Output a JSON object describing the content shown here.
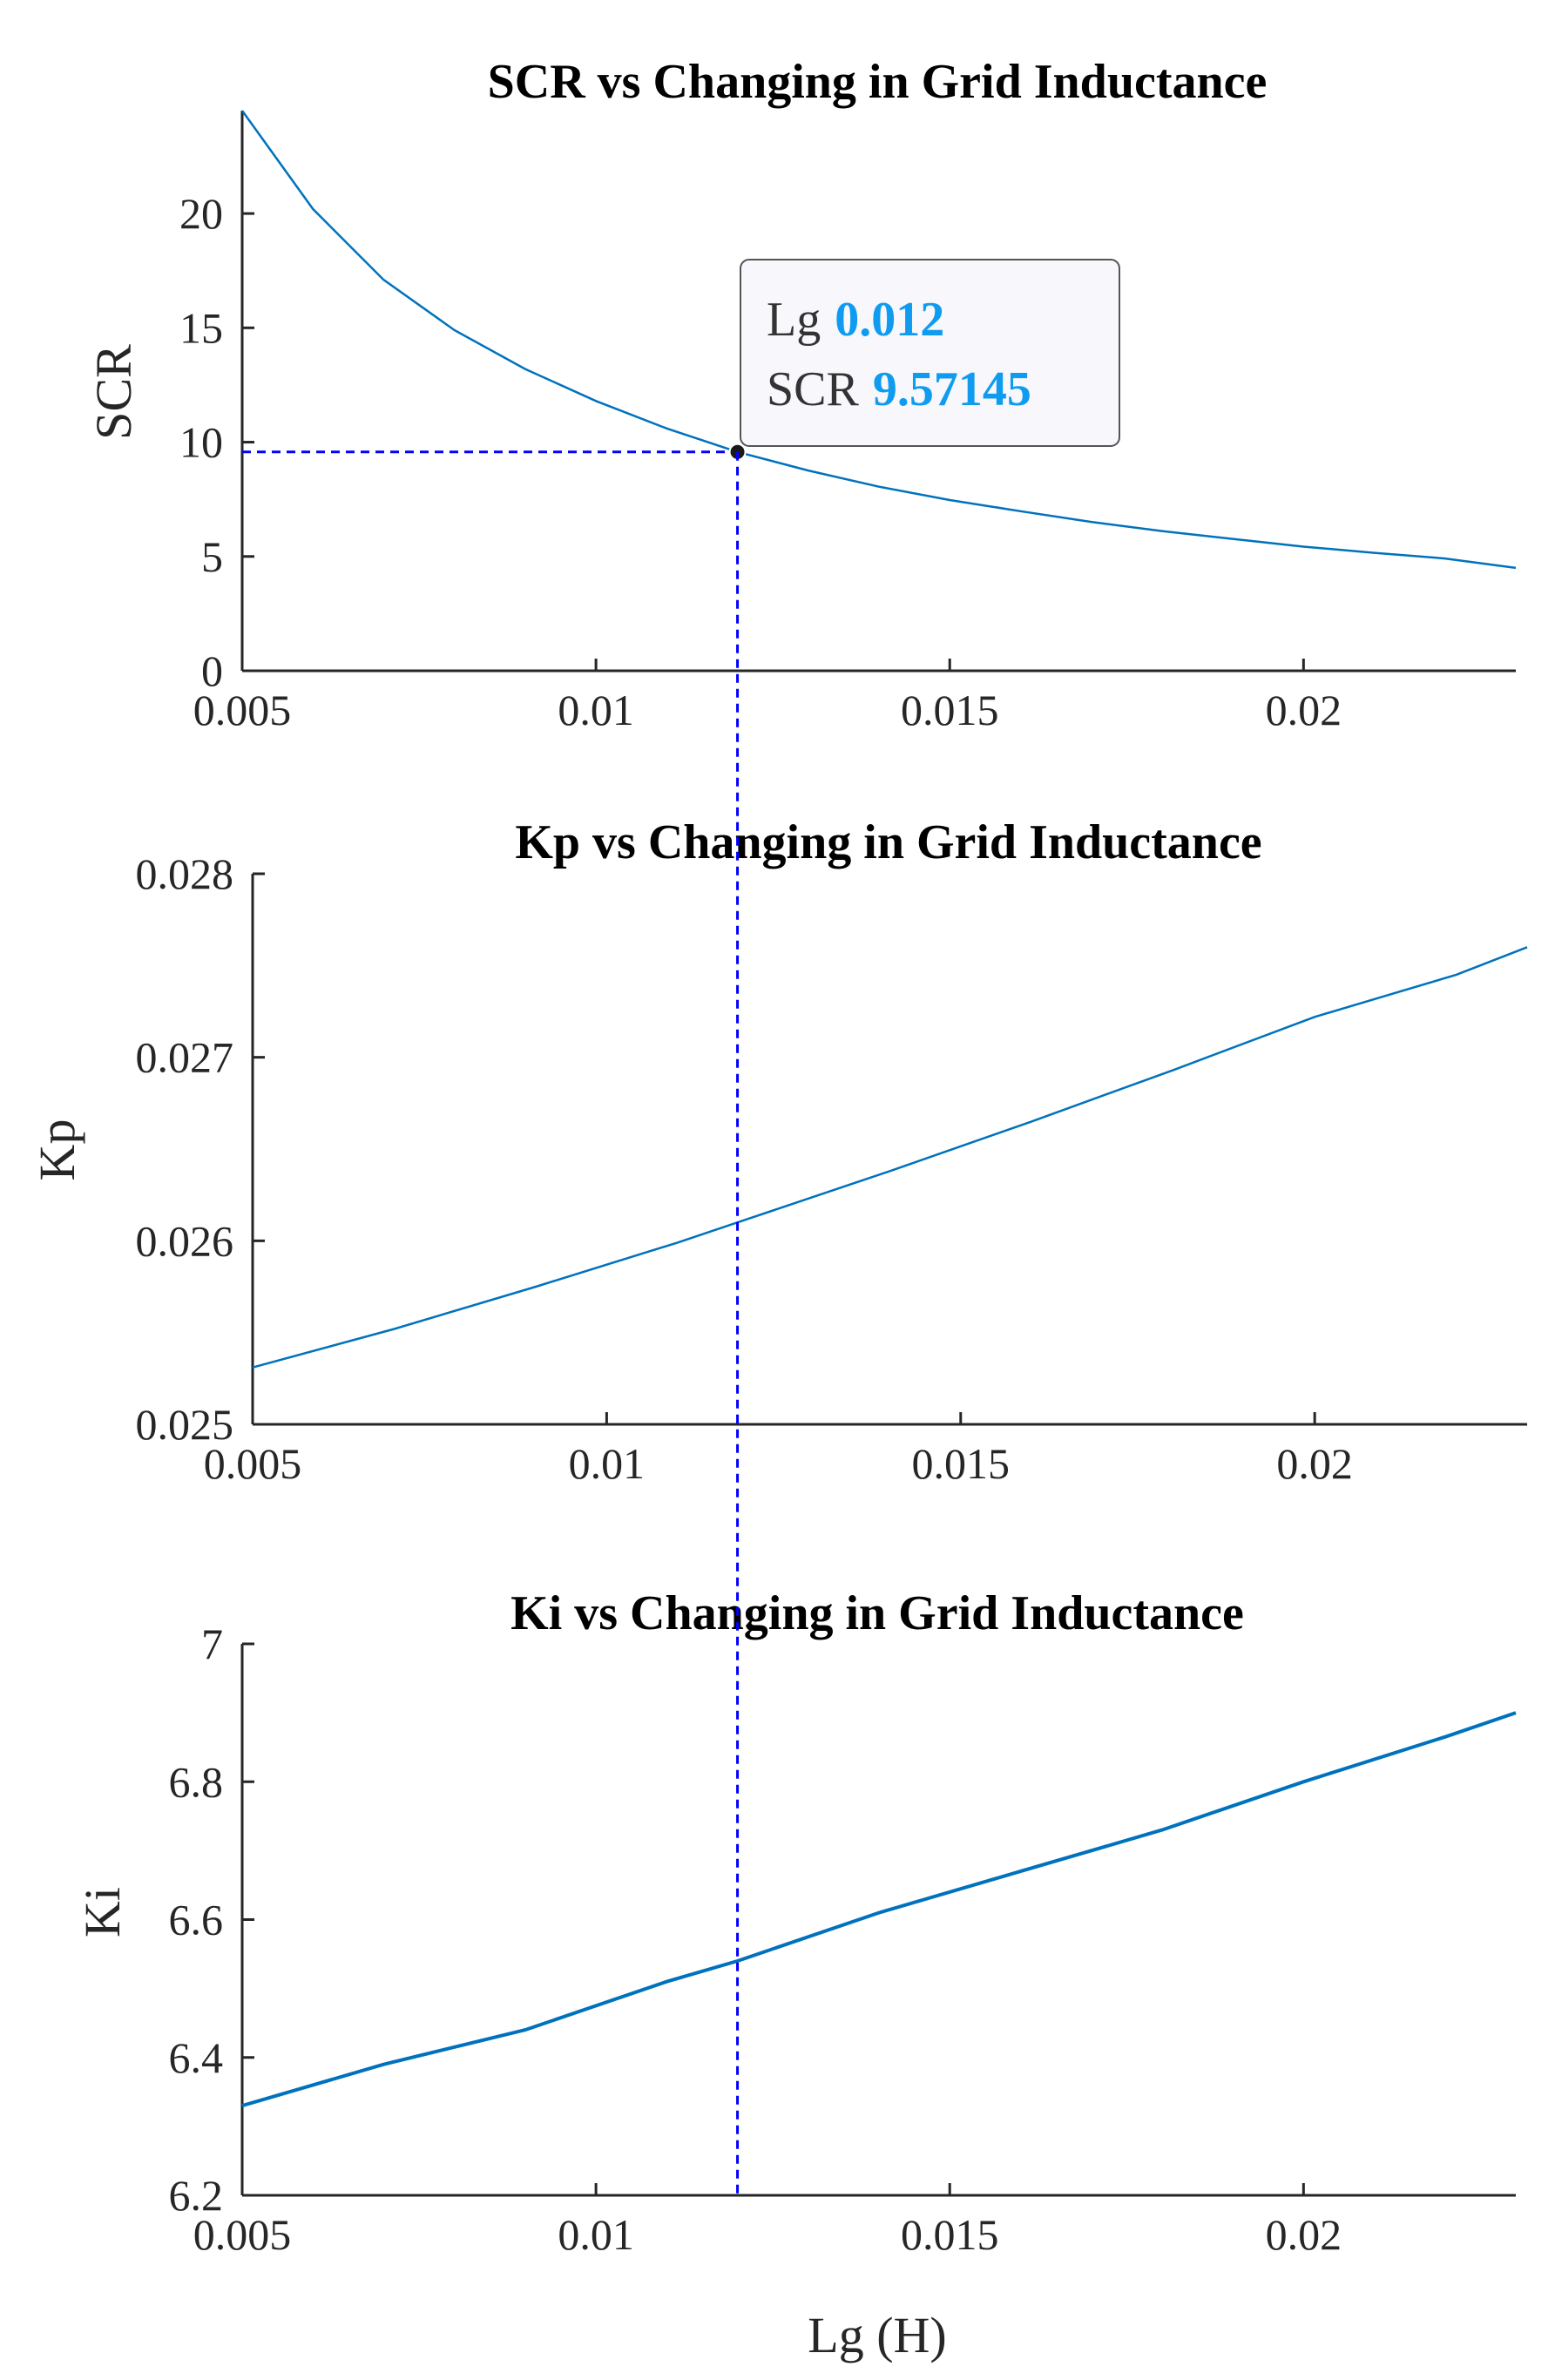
{
  "chart_data": [
    {
      "type": "line",
      "title": "SCR vs Changing in Grid Inductance",
      "xlabel": "",
      "ylabel": "SCR",
      "xlim": [
        0.005,
        0.023
      ],
      "ylim": [
        0,
        24.5
      ],
      "xticks": [
        "0.005",
        "0.01",
        "0.015",
        "0.02"
      ],
      "yticks": [
        "0",
        "5",
        "10",
        "15",
        "20"
      ],
      "series": [
        {
          "name": "SCR",
          "color": "#0072BD",
          "x": [
            0.005,
            0.006,
            0.007,
            0.008,
            0.009,
            0.01,
            0.011,
            0.012,
            0.013,
            0.014,
            0.015,
            0.016,
            0.017,
            0.018,
            0.019,
            0.02,
            0.021,
            0.022,
            0.023
          ],
          "y": [
            24.5,
            20.2,
            17.1,
            14.9,
            13.2,
            11.8,
            10.6,
            9.57145,
            8.76,
            8.05,
            7.47,
            6.98,
            6.51,
            6.11,
            5.77,
            5.43,
            5.16,
            4.91,
            4.5
          ]
        }
      ],
      "datatip": {
        "x_label": "Lg",
        "x_value": "0.012",
        "y_label": "SCR",
        "y_value": "9.57145",
        "x": 0.012,
        "y": 9.57145
      }
    },
    {
      "type": "line",
      "title": "Kp vs Changing in Grid Inductance",
      "xlabel": "",
      "ylabel": "Kp",
      "xlim": [
        0.005,
        0.023
      ],
      "ylim": [
        0.025,
        0.028
      ],
      "xticks": [
        "0.005",
        "0.01",
        "0.015",
        "0.02"
      ],
      "yticks": [
        "0.025",
        "0.026",
        "0.027",
        "0.028"
      ],
      "series": [
        {
          "name": "Kp",
          "color": "#0072BD",
          "x": [
            0.005,
            0.007,
            0.009,
            0.011,
            0.012,
            0.014,
            0.016,
            0.018,
            0.02,
            0.022,
            0.023
          ],
          "y": [
            0.02531,
            0.02552,
            0.02575,
            0.02599,
            0.02612,
            0.02638,
            0.02665,
            0.02693,
            0.02722,
            0.02745,
            0.0276
          ]
        }
      ]
    },
    {
      "type": "line",
      "title": "Ki vs Changing in Grid Inductance",
      "xlabel": "Lg (H)",
      "ylabel": "Ki",
      "xlim": [
        0.005,
        0.023
      ],
      "ylim": [
        6.2,
        7.0
      ],
      "xticks": [
        "0.005",
        "0.01",
        "0.015",
        "0.02"
      ],
      "yticks": [
        "6.2",
        "6.4",
        "6.6",
        "6.8",
        "7"
      ],
      "series": [
        {
          "name": "Ki",
          "color": "#0072BD",
          "x": [
            0.005,
            0.007,
            0.009,
            0.011,
            0.012,
            0.014,
            0.016,
            0.018,
            0.02,
            0.022,
            0.023
          ],
          "y": [
            6.33,
            6.39,
            6.44,
            6.51,
            6.54,
            6.61,
            6.67,
            6.73,
            6.8,
            6.865,
            6.9
          ]
        }
      ]
    }
  ],
  "marker_line": {
    "x": 0.012,
    "color": "#0000ff"
  }
}
